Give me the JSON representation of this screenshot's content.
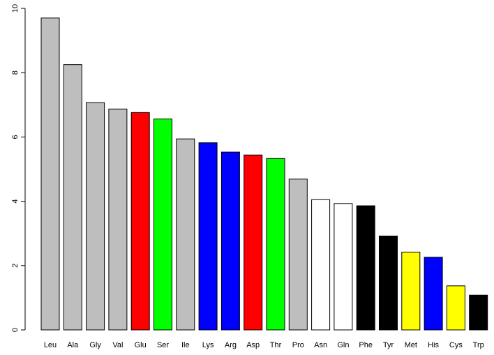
{
  "chart_data": {
    "type": "bar",
    "title": "",
    "xlabel": "",
    "ylabel": "",
    "ylim": [
      0,
      10
    ],
    "yticks": [
      0,
      2,
      4,
      6,
      8,
      10
    ],
    "grid": false,
    "categories": [
      "Leu",
      "Ala",
      "Gly",
      "Val",
      "Glu",
      "Ser",
      "Ile",
      "Lys",
      "Arg",
      "Asp",
      "Thr",
      "Pro",
      "Asn",
      "Gln",
      "Phe",
      "Tyr",
      "Met",
      "His",
      "Cys",
      "Trp"
    ],
    "values": [
      9.7,
      8.25,
      7.07,
      6.87,
      6.76,
      6.56,
      5.94,
      5.82,
      5.53,
      5.44,
      5.33,
      4.69,
      4.05,
      3.93,
      3.86,
      2.92,
      2.42,
      2.26,
      1.37,
      1.08
    ],
    "colors": [
      "#bebebe",
      "#bebebe",
      "#bebebe",
      "#bebebe",
      "#ff0000",
      "#00ff00",
      "#bebebe",
      "#0000ff",
      "#0000ff",
      "#ff0000",
      "#00ff00",
      "#bebebe",
      "#ffffff",
      "#ffffff",
      "#000000",
      "#000000",
      "#ffff00",
      "#0000ff",
      "#ffff00",
      "#000000"
    ]
  }
}
